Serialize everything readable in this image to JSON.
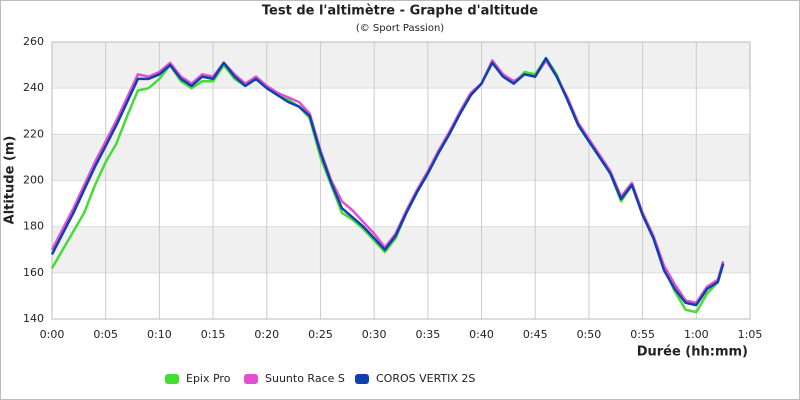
{
  "chart_data": {
    "type": "line",
    "title": "Test de l'altimètre - Graphe d'altitude",
    "subtitle": "(© Sport Passion)",
    "x_label": "Durée (hh:mm)",
    "y_label": "Altitude (m)",
    "x": [
      0,
      1,
      2,
      3,
      4,
      5,
      6,
      7,
      8,
      9,
      10,
      11,
      12,
      13,
      14,
      15,
      16,
      17,
      18,
      19,
      20,
      21,
      22,
      23,
      24,
      25,
      26,
      27,
      28,
      29,
      30,
      31,
      32,
      33,
      34,
      35,
      36,
      37,
      38,
      39,
      40,
      41,
      42,
      43,
      44,
      45,
      46,
      47,
      48,
      49,
      50,
      51,
      52,
      53,
      54,
      55,
      56,
      57,
      58,
      59,
      60,
      61,
      62,
      62.5
    ],
    "series": [
      {
        "name": "Epix Pro",
        "color": "#44dd33",
        "values": [
          162,
          170,
          178,
          186,
          198,
          208,
          216,
          228,
          239,
          240,
          244,
          250,
          243,
          240,
          243,
          243,
          250,
          244,
          241,
          244,
          240,
          237,
          235,
          232,
          227,
          210,
          198,
          186,
          183,
          179,
          174,
          169,
          175,
          186,
          195,
          203,
          212,
          220,
          229,
          237,
          242,
          252,
          245,
          242,
          247,
          246,
          253,
          246,
          235,
          224,
          217,
          210,
          203,
          191,
          198,
          186,
          176,
          162,
          152,
          144,
          143,
          151,
          156,
          164
        ]
      },
      {
        "name": "Suunto Race S",
        "color": "#e050d0",
        "values": [
          170,
          179,
          188,
          198,
          208,
          217,
          226,
          236,
          246,
          245,
          247,
          251,
          245,
          242,
          246,
          245,
          251,
          246,
          242,
          245,
          241,
          238,
          236,
          234,
          229,
          213,
          200,
          191,
          187,
          182,
          177,
          171,
          177,
          187,
          196,
          204,
          213,
          221,
          230,
          238,
          242,
          252,
          246,
          243,
          246,
          245,
          252,
          245,
          236,
          225,
          218,
          211,
          204,
          193,
          199,
          186,
          176,
          163,
          155,
          148,
          147,
          154,
          157,
          165
        ]
      },
      {
        "name": "COROS VERTIX 2S",
        "color": "#1040b0",
        "values": [
          168,
          177,
          186,
          196,
          206,
          215,
          224,
          234,
          244,
          244,
          246,
          250,
          244,
          241,
          245,
          244,
          251,
          245,
          241,
          244,
          240,
          237,
          234,
          232,
          228,
          212,
          199,
          188,
          184,
          180,
          175,
          170,
          176,
          186,
          195,
          203,
          212,
          220,
          229,
          237,
          242,
          251,
          245,
          242,
          246,
          245,
          253,
          245,
          235,
          224,
          217,
          210,
          203,
          192,
          198,
          185,
          175,
          161,
          153,
          147,
          146,
          153,
          156,
          164
        ]
      }
    ],
    "xlim": [
      0,
      65
    ],
    "ylim": [
      140,
      260
    ],
    "xticks": [
      {
        "value": 0,
        "label": "0:00"
      },
      {
        "value": 5,
        "label": "0:05"
      },
      {
        "value": 10,
        "label": "0:10"
      },
      {
        "value": 15,
        "label": "0:15"
      },
      {
        "value": 20,
        "label": "0:20"
      },
      {
        "value": 25,
        "label": "0:25"
      },
      {
        "value": 30,
        "label": "0:30"
      },
      {
        "value": 35,
        "label": "0:35"
      },
      {
        "value": 40,
        "label": "0:40"
      },
      {
        "value": 45,
        "label": "0:45"
      },
      {
        "value": 50,
        "label": "0:50"
      },
      {
        "value": 55,
        "label": "0:55"
      },
      {
        "value": 60,
        "label": "1:00"
      },
      {
        "value": 65,
        "label": "1:05"
      }
    ],
    "yticks": [
      140,
      160,
      180,
      200,
      220,
      240,
      260
    ],
    "grid": true,
    "legend": "bottom"
  }
}
